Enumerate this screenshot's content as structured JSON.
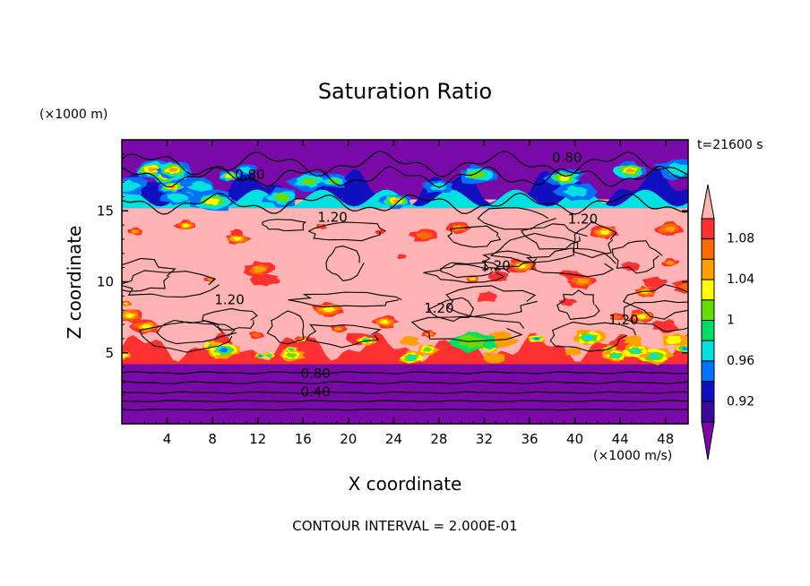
{
  "chart_data": {
    "type": "heatmap",
    "title": "Saturation Ratio",
    "xlabel": "X coordinate",
    "ylabel": "Z coordinate",
    "x_unit": "(×1000 m/s)",
    "y_unit": "(×1000 m)",
    "time_label": "t=21600 s",
    "footer": "CONTOUR INTERVAL = 2.000E-01",
    "xlim": [
      0,
      50
    ],
    "ylim": [
      0,
      20
    ],
    "x_ticks": [
      4,
      8,
      12,
      16,
      20,
      24,
      28,
      32,
      36,
      40,
      44,
      48
    ],
    "y_ticks": [
      5,
      10,
      15
    ],
    "colorbar": {
      "labels": [
        "1.08",
        "1.04",
        "1",
        "0.96",
        "0.92"
      ],
      "label_values": [
        1.08,
        1.04,
        1.0,
        0.96,
        0.92
      ],
      "bins": [
        {
          "min": 1.1,
          "max": null,
          "color": "#ffb3b3"
        },
        {
          "min": 1.08,
          "max": 1.1,
          "color": "#ff3030"
        },
        {
          "min": 1.06,
          "max": 1.08,
          "color": "#ff6a00"
        },
        {
          "min": 1.04,
          "max": 1.06,
          "color": "#ffa000"
        },
        {
          "min": 1.02,
          "max": 1.04,
          "color": "#ffff00"
        },
        {
          "min": 1.0,
          "max": 1.02,
          "color": "#66dd00"
        },
        {
          "min": 0.98,
          "max": 1.0,
          "color": "#00dd66"
        },
        {
          "min": 0.96,
          "max": 0.98,
          "color": "#00e0e0"
        },
        {
          "min": 0.94,
          "max": 0.96,
          "color": "#0070ff"
        },
        {
          "min": 0.92,
          "max": 0.94,
          "color": "#1010c0"
        },
        {
          "min": 0.9,
          "max": 0.92,
          "color": "#3a0aa0"
        },
        {
          "min": null,
          "max": 0.9,
          "color": "#7a0aa8"
        }
      ]
    },
    "contour_labels": [
      {
        "text": "0.80",
        "x": 11.3,
        "y": 17.5
      },
      {
        "text": "0.80",
        "x": 39.3,
        "y": 18.7
      },
      {
        "text": "1.20",
        "x": 18.6,
        "y": 14.5
      },
      {
        "text": "1.20",
        "x": 40.7,
        "y": 14.4
      },
      {
        "text": "1.20",
        "x": 33.0,
        "y": 11.1
      },
      {
        "text": "1.20",
        "x": 9.5,
        "y": 8.7
      },
      {
        "text": "1.20",
        "x": 28.0,
        "y": 8.1
      },
      {
        "text": "1.20",
        "x": 44.3,
        "y": 7.3
      },
      {
        "text": "0.80",
        "x": 17.1,
        "y": 3.5
      },
      {
        "text": "0.40",
        "x": 17.1,
        "y": 2.2
      }
    ]
  }
}
